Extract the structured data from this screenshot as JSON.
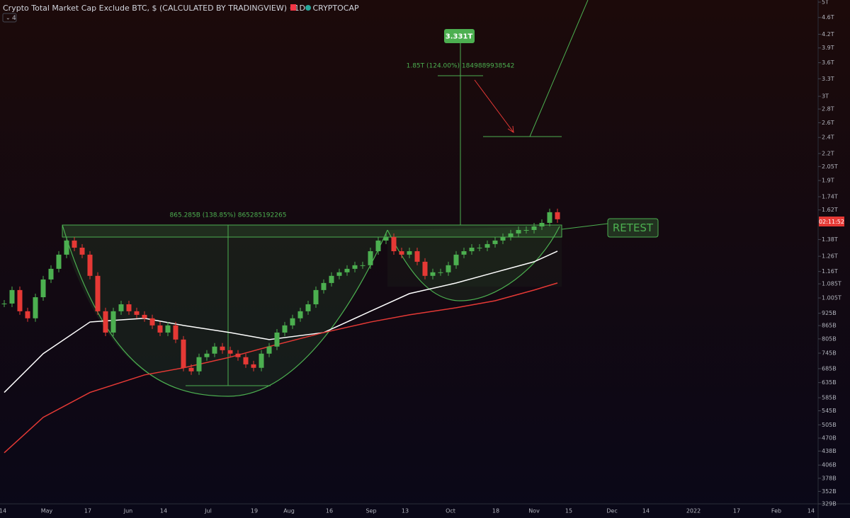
{
  "chart_data": {
    "type": "candlestick",
    "title": "Crypto Total Market Cap Exclude BTC, $ (CALCULATED BY TRADINGVIEW) · 1D · CRYPTOCAP",
    "indicator_count": "4",
    "countdown": "02:11:52",
    "log_scale": true,
    "up_color": "#4caf50",
    "down_color": "#e53935",
    "values": [
      975,
      1049,
      935,
      900,
      1009,
      1111,
      1177,
      1271,
      1372,
      1320,
      1271,
      1133,
      935,
      833,
      935,
      971,
      935,
      917,
      900,
      866,
      833,
      866,
      802,
      688,
      675,
      729,
      743,
      772,
      757,
      743,
      729,
      701,
      688,
      743,
      772,
      833,
      866,
      900,
      935,
      971,
      1049,
      1090,
      1133,
      1155,
      1177,
      1200,
      1200,
      1295,
      1372,
      1399,
      1295,
      1271,
      1295,
      1223,
      1133,
      1155,
      1155,
      1200,
      1271,
      1295,
      1320,
      1320,
      1346,
      1372,
      1399,
      1426,
      1453,
      1453,
      1481,
      1510,
      1600,
      1540
    ],
    "overlays": [
      {
        "color": "#ffffff",
        "x": [
          0,
          5,
          11,
          18,
          23,
          29,
          34,
          41,
          47,
          52,
          58,
          63,
          68,
          71
        ],
        "values": [
          602,
          743,
          882,
          900,
          866,
          833,
          802,
          833,
          935,
          1029,
          1090,
          1155,
          1223,
          1295
        ]
      },
      {
        "color": "#e53935",
        "x": [
          0,
          5,
          11,
          18,
          23,
          29,
          34,
          41,
          47,
          52,
          58,
          63,
          68,
          71
        ],
        "values": [
          434,
          526,
          602,
          662,
          688,
          729,
          772,
          833,
          882,
          917,
          953,
          990,
          1049,
          1090
        ]
      }
    ],
    "ylim": [
      329,
      5058
    ],
    "yticks": [
      {
        "value": 5000,
        "label": "5T"
      },
      {
        "value": 4600,
        "label": "4.6T"
      },
      {
        "value": 4200,
        "label": "4.2T"
      },
      {
        "value": 3900,
        "label": "3.9T"
      },
      {
        "value": 3600,
        "label": "3.6T"
      },
      {
        "value": 3300,
        "label": "3.3T"
      },
      {
        "value": 3000,
        "label": "3T"
      },
      {
        "value": 2800,
        "label": "2.8T"
      },
      {
        "value": 2600,
        "label": "2.6T"
      },
      {
        "value": 2400,
        "label": "2.4T"
      },
      {
        "value": 2200,
        "label": "2.2T"
      },
      {
        "value": 2050,
        "label": "2.05T"
      },
      {
        "value": 1900,
        "label": "1.9T"
      },
      {
        "value": 1740,
        "label": "1.74T"
      },
      {
        "value": 1620,
        "label": "1.62T"
      },
      {
        "value": 1380,
        "label": "1.38T"
      },
      {
        "value": 1260,
        "label": "1.26T"
      },
      {
        "value": 1160,
        "label": "1.16T"
      },
      {
        "value": 1085,
        "label": "1.085T"
      },
      {
        "value": 1005,
        "label": "1.005T"
      },
      {
        "value": 925,
        "label": "925B"
      },
      {
        "value": 865,
        "label": "865B"
      },
      {
        "value": 805,
        "label": "805B"
      },
      {
        "value": 745,
        "label": "745B"
      },
      {
        "value": 685,
        "label": "685B"
      },
      {
        "value": 635,
        "label": "635B"
      },
      {
        "value": 585,
        "label": "585B"
      },
      {
        "value": 545,
        "label": "545B"
      },
      {
        "value": 505,
        "label": "505B"
      },
      {
        "value": 470,
        "label": "470B"
      },
      {
        "value": 438,
        "label": "438B"
      },
      {
        "value": 406,
        "label": "406B"
      },
      {
        "value": 378,
        "label": "378B"
      },
      {
        "value": 352,
        "label": "352B"
      },
      {
        "value": 329,
        "label": "329B"
      }
    ],
    "xtick_labels": [
      "14",
      "May",
      "17",
      "Jun",
      "14",
      "Jul",
      "19",
      "Aug",
      "16",
      "Sep",
      "13",
      "Oct",
      "18",
      "Nov",
      "15",
      "Dec",
      "14",
      "2022",
      "17",
      "Feb",
      "14"
    ],
    "annotations": {
      "target": "3.331T",
      "target_move": "1.85T (124.00%) 1849889938542",
      "depth_move": "865.285B (138.85%) 865285192265",
      "retest": "RETEST"
    }
  }
}
